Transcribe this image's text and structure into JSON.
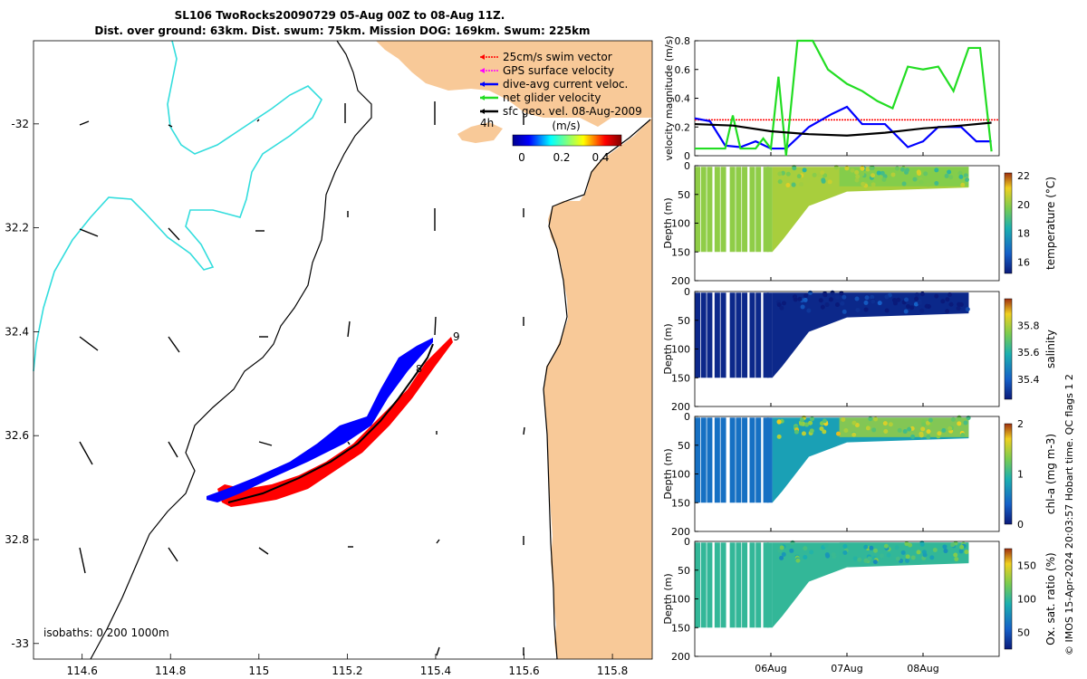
{
  "title": {
    "line1": "SL106 TwoRocks20090729 05-Aug 00Z to 08-Aug 11Z.",
    "line2": "Dist. over ground: 63km. Dist. swum: 75km. Mission DOG: 169km. Swum: 225km"
  },
  "colors": {
    "land": "#F8C998",
    "swim": "#FF0000",
    "gps": "#FF00FF",
    "diveavg": "#0000FF",
    "net": "#22DD22",
    "sfc": "#000000",
    "isobath200": "#33DDDD"
  },
  "map": {
    "isobaths_label": "isobaths: 0   200  1000m",
    "xlim": [
      114.49,
      115.89
    ],
    "ylim": [
      -33.03,
      -31.84
    ],
    "xticks": [
      114.6,
      114.8,
      115.0,
      115.2,
      115.4,
      115.6,
      115.8
    ],
    "xtick_labels": [
      "114.6",
      "114.8",
      "115",
      "115.2",
      "115.4",
      "115.6",
      "115.8"
    ],
    "yticks": [
      -32.0,
      -32.2,
      -32.4,
      -32.6,
      -32.8,
      -33.0
    ],
    "ytick_labels": [
      "-32",
      "32.2",
      "32.4",
      "32.6",
      "32.8",
      "-33"
    ],
    "legend": [
      {
        "label": "25cm/s swim vector",
        "color": "#FF0000",
        "style": "dotted"
      },
      {
        "label": "GPS surface velocity",
        "color": "#FF00FF",
        "style": "dotted"
      },
      {
        "label": "dive-avg current veloc.",
        "color": "#0000FF",
        "style": "solid"
      },
      {
        "label": "net glider velocity",
        "color": "#22DD22",
        "style": "solid"
      },
      {
        "label": "sfc geo. vel. 08-Aug-2009",
        "color": "#000000",
        "style": "solid"
      }
    ],
    "colorbar": {
      "title": "(m/s)",
      "ticks": [
        "0",
        "0.2",
        "0.4"
      ],
      "range": [
        0,
        0.5
      ]
    },
    "track_labels": [
      "4h",
      "8",
      "9"
    ]
  },
  "chart_data": [
    {
      "type": "line",
      "title": "",
      "ylabel": "velocity magnitude (m/s)",
      "xlabel": "",
      "x_unit": "days since 05-Aug 00Z",
      "xlim": [
        0,
        4
      ],
      "ylim": [
        0,
        0.8
      ],
      "yticks": [
        "0",
        "0.2",
        "0.4",
        "0.6",
        "0.8"
      ],
      "series": [
        {
          "name": "swim vector",
          "color": "#FF0000",
          "x": [
            0,
            4
          ],
          "values": [
            0.25,
            0.25
          ]
        },
        {
          "name": "dive-avg current",
          "color": "#0000FF",
          "x": [
            0,
            0.2,
            0.4,
            0.6,
            0.8,
            1.0,
            1.2,
            1.5,
            1.8,
            2.0,
            2.2,
            2.5,
            2.8,
            3.0,
            3.2,
            3.5,
            3.7,
            3.9
          ],
          "values": [
            0.26,
            0.24,
            0.07,
            0.06,
            0.1,
            0.05,
            0.05,
            0.2,
            0.29,
            0.34,
            0.22,
            0.22,
            0.06,
            0.1,
            0.2,
            0.2,
            0.1,
            0.1
          ]
        },
        {
          "name": "net glider velocity",
          "color": "#22DD22",
          "x": [
            0,
            0.2,
            0.4,
            0.5,
            0.6,
            0.8,
            0.9,
            1.0,
            1.1,
            1.2,
            1.35,
            1.55,
            1.75,
            2.0,
            2.2,
            2.4,
            2.6,
            2.8,
            3.0,
            3.2,
            3.4,
            3.6,
            3.75,
            3.9
          ],
          "values": [
            0.05,
            0.05,
            0.05,
            0.28,
            0.05,
            0.05,
            0.12,
            0.05,
            0.55,
            0.0,
            0.8,
            0.8,
            0.6,
            0.5,
            0.45,
            0.38,
            0.33,
            0.62,
            0.6,
            0.62,
            0.45,
            0.75,
            0.75,
            0.03
          ]
        },
        {
          "name": "sfc geo. vel.",
          "color": "#000000",
          "x": [
            0,
            0.5,
            1.0,
            1.5,
            2.0,
            2.5,
            3.0,
            3.5,
            3.9
          ],
          "values": [
            0.22,
            0.21,
            0.17,
            0.15,
            0.14,
            0.16,
            0.19,
            0.21,
            0.23
          ]
        }
      ],
      "xtick_labels": [
        "06Aug",
        "07Aug",
        "08Aug"
      ]
    },
    {
      "type": "scatter",
      "ylabel": "Depth (m)",
      "clabel": "temperature (°C)",
      "ylim": [
        200,
        0
      ],
      "yticks": [
        "0",
        "50",
        "100",
        "150",
        "200"
      ],
      "clim": [
        15.2,
        22.2
      ],
      "cticks": [
        "16",
        "18",
        "20",
        "22"
      ],
      "mean_values_by_segment": [
        20.0,
        20.3,
        19.8
      ]
    },
    {
      "type": "scatter",
      "ylabel": "Depth (m)",
      "clabel": "salinity",
      "ylim": [
        200,
        0
      ],
      "yticks": [
        "0",
        "50",
        "100",
        "150",
        "200"
      ],
      "clim": [
        35.25,
        36.0
      ],
      "cticks": [
        "35.4",
        "35.6",
        "35.8"
      ],
      "mean_values_by_segment": [
        35.28,
        35.28,
        35.28
      ]
    },
    {
      "type": "scatter",
      "ylabel": "Depth (m)",
      "clabel": "chl-a (mg m-3)",
      "ylim": [
        200,
        0
      ],
      "yticks": [
        "0",
        "50",
        "100",
        "150",
        "200"
      ],
      "clim": [
        0,
        2
      ],
      "cticks": [
        "0",
        "1",
        "2"
      ],
      "mean_values_by_segment": [
        0.5,
        0.8,
        1.4
      ]
    },
    {
      "type": "scatter",
      "ylabel": "Depth (m)",
      "clabel": "Ox. sat. ratio (%)",
      "ylim": [
        200,
        0
      ],
      "yticks": [
        "0",
        "50",
        "100",
        "150",
        "200"
      ],
      "clim": [
        25,
        175
      ],
      "cticks": [
        "50",
        "100",
        "150"
      ],
      "mean_values_by_segment": [
        100,
        100,
        100
      ]
    }
  ],
  "footer": {
    "side_text": "© IMOS 15-Apr-2024 20:03:57 Hobart time. QC flags 1  2"
  }
}
